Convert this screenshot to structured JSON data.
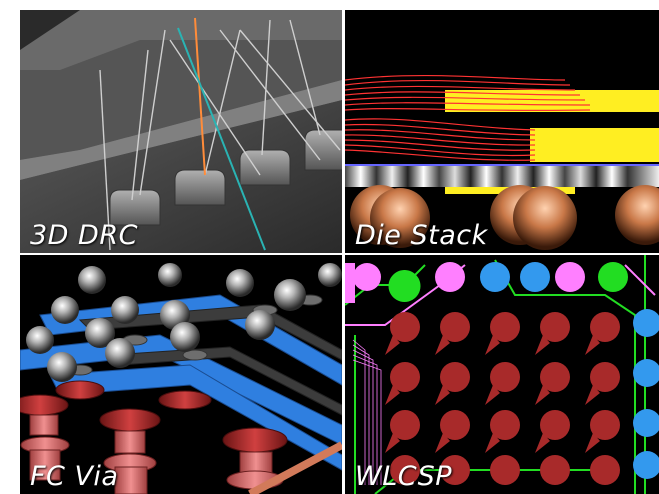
{
  "tiles": [
    {
      "caption": "3D DRC"
    },
    {
      "caption": "Die Stack"
    },
    {
      "caption": "FC Via"
    },
    {
      "caption": "WLCSP"
    }
  ],
  "colors": {
    "background": "#000000",
    "wire_gray": "#c8c8c8",
    "wire_orange": "#ff8c3a",
    "wire_teal": "#2ab3b3",
    "trace_red": "#ff3333",
    "die_yellow": "#ffee22",
    "bump_copper": "#d98a5a",
    "ball_silver": "#bfbfbf",
    "trace_blue": "#2f7fe0",
    "via_red": "#b32d2d",
    "pad_red": "#a82a2a",
    "pad_green": "#22dd22",
    "pad_pink": "#ff7fff",
    "pad_blue": "#3399ee"
  }
}
